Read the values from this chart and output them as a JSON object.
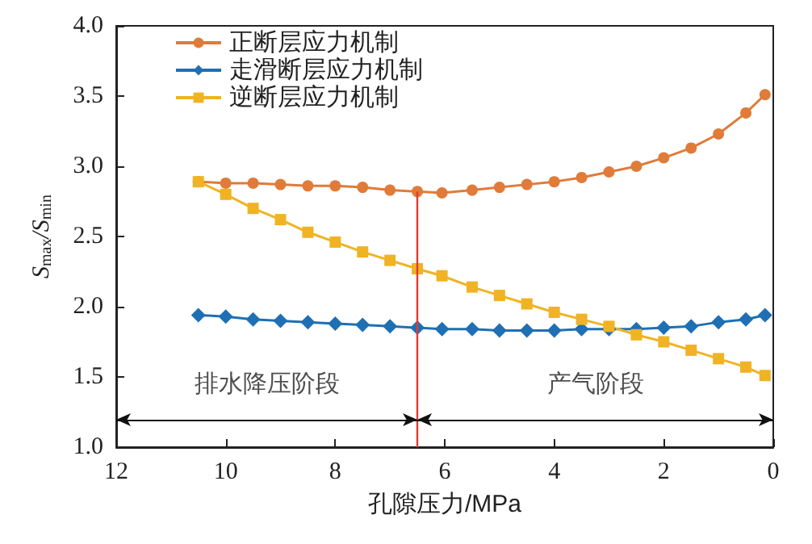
{
  "chart_data": {
    "type": "line",
    "x": [
      10.5,
      10,
      9.5,
      9,
      8.5,
      8,
      7.5,
      7,
      6.5,
      6.05,
      5.5,
      5,
      4.5,
      4,
      3.5,
      3,
      2.5,
      2,
      1.5,
      1,
      0.5,
      0.15
    ],
    "series": [
      {
        "name": "正断层应力机制",
        "color": "#e07b39",
        "marker": "circle",
        "values": [
          2.89,
          2.88,
          2.88,
          2.87,
          2.86,
          2.86,
          2.85,
          2.83,
          2.82,
          2.81,
          2.83,
          2.85,
          2.87,
          2.89,
          2.92,
          2.96,
          3.0,
          3.06,
          3.13,
          3.23,
          3.38,
          3.51
        ]
      },
      {
        "name": "走滑断层应力机制",
        "color": "#1f6fb4",
        "marker": "diamond",
        "values": [
          1.94,
          1.93,
          1.91,
          1.9,
          1.89,
          1.88,
          1.87,
          1.86,
          1.85,
          1.84,
          1.84,
          1.83,
          1.83,
          1.83,
          1.84,
          1.84,
          1.84,
          1.85,
          1.86,
          1.89,
          1.91,
          1.94
        ]
      },
      {
        "name": "逆断层应力机制",
        "color": "#f0b323",
        "marker": "square",
        "values": [
          2.89,
          2.8,
          2.7,
          2.62,
          2.53,
          2.46,
          2.39,
          2.33,
          2.27,
          2.22,
          2.14,
          2.08,
          2.02,
          1.96,
          1.91,
          1.86,
          1.8,
          1.75,
          1.69,
          1.63,
          1.57,
          1.51
        ]
      }
    ],
    "xlabel": "孔隙压力/MPa",
    "ylabel": "S$_{max}$/S$_{min}$",
    "xlim": [
      12,
      0
    ],
    "xticks": [
      12,
      10,
      8,
      6,
      4,
      2,
      0
    ],
    "ylim": [
      1.0,
      4.0
    ],
    "yticks": [
      {
        "value": 1.0,
        "label": "1.0"
      },
      {
        "value": 1.5,
        "label": "1.5"
      },
      {
        "value": 2.0,
        "label": "2.0"
      },
      {
        "value": 2.5,
        "label": "2.5"
      },
      {
        "value": 3.0,
        "label": "3.0"
      },
      {
        "value": 3.5,
        "label": "3.5"
      },
      {
        "value": 4.0,
        "label": "4.0"
      }
    ],
    "ref_lines": [
      {
        "axis": "x",
        "value": 6.5,
        "color": "#e03c31"
      }
    ],
    "annotations": [
      "排水降压阶段",
      "产气阶段"
    ],
    "grid": false,
    "legend": "top left",
    "line_style": "solid"
  }
}
